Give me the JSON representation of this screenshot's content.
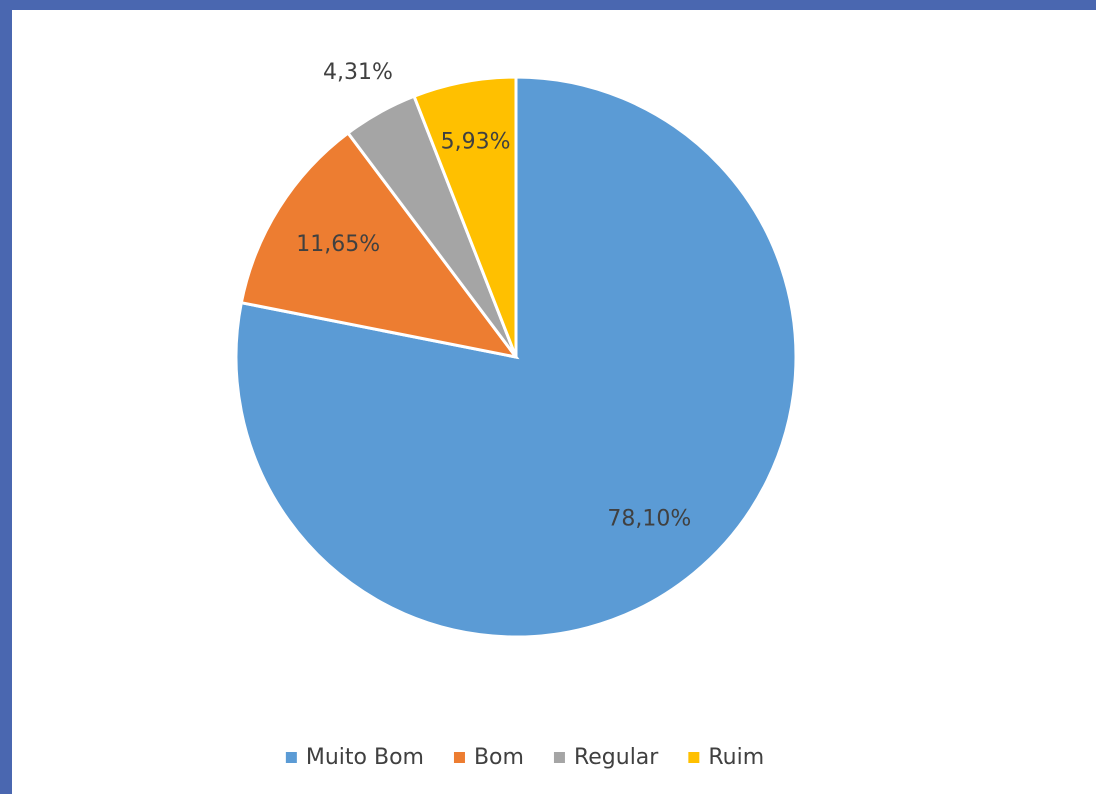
{
  "chart_data": {
    "type": "pie",
    "categories": [
      "Muito Bom",
      "Bom",
      "Regular",
      "Ruim"
    ],
    "values": [
      78.1,
      11.65,
      4.31,
      5.93
    ],
    "value_labels": [
      "78,10%",
      "11,65%",
      "4,31%",
      "5,93%"
    ],
    "colors": [
      "#5b9bd5",
      "#ed7d31",
      "#a5a5a5",
      "#ffc000"
    ],
    "legend": "bottom"
  }
}
